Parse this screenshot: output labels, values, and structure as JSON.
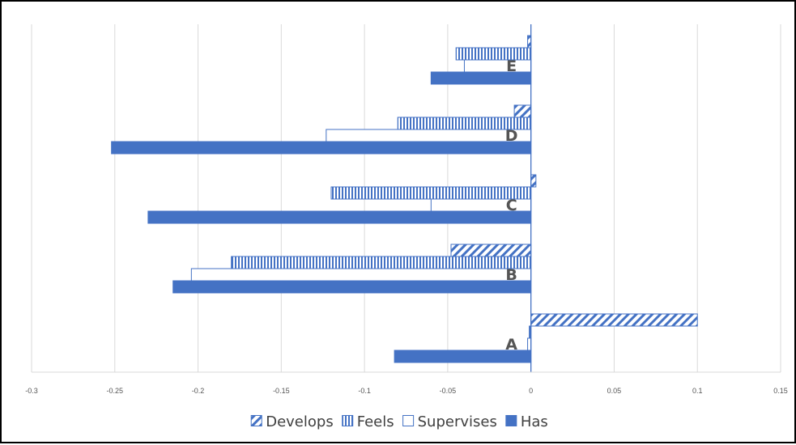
{
  "chart_data": {
    "type": "bar",
    "orientation": "horizontal",
    "categories": [
      "A",
      "B",
      "C",
      "D",
      "E"
    ],
    "series": [
      {
        "name": "Develops",
        "values": [
          0.1,
          -0.048,
          0.003,
          -0.01,
          -0.002
        ],
        "pattern": "diagonal-hatch",
        "color": "#4472C4"
      },
      {
        "name": "Feels",
        "values": [
          -0.001,
          -0.18,
          -0.12,
          -0.08,
          -0.045
        ],
        "pattern": "vertical-hatch",
        "color": "#4472C4"
      },
      {
        "name": "Supervises",
        "values": [
          -0.002,
          -0.204,
          -0.06,
          -0.123,
          -0.04
        ],
        "pattern": "outline",
        "color": "#4472C4"
      },
      {
        "name": "Has",
        "values": [
          -0.082,
          -0.215,
          -0.23,
          -0.252,
          -0.06
        ],
        "pattern": "solid",
        "color": "#4472C4"
      }
    ],
    "xlim": [
      -0.3,
      0.15
    ],
    "xticks": [
      -0.3,
      -0.25,
      -0.2,
      -0.15,
      -0.1,
      -0.05,
      0,
      0.05,
      0.1,
      0.15
    ],
    "xtick_labels": [
      "-0.3",
      "-0.25",
      "-0.2",
      "-0.15",
      "-0.1",
      "-0.05",
      "0",
      "0.05",
      "0.1",
      "0.15"
    ],
    "grid": "vertical",
    "legend": "bottom",
    "title": "",
    "xlabel": "",
    "ylabel": ""
  }
}
